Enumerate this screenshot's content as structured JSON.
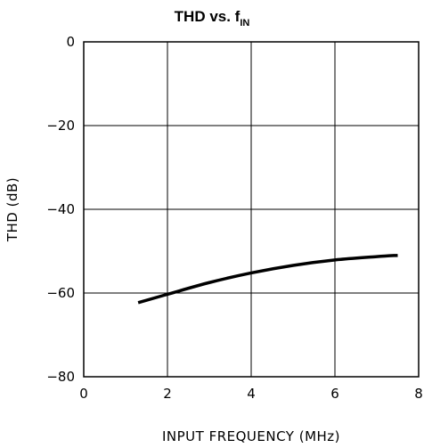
{
  "chart_data": {
    "type": "line",
    "title": {
      "main": "THD vs. f",
      "subscript": "IN"
    },
    "xlabel": "INPUT FREQUENCY (MHz)",
    "ylabel": "THD (dB)",
    "xlim": [
      0,
      8
    ],
    "ylim": [
      -80,
      0
    ],
    "xticks": [
      0,
      2,
      4,
      6,
      8
    ],
    "yticks": [
      0,
      -20,
      -40,
      -60,
      -80
    ],
    "grid": true,
    "series": [
      {
        "x": [
          1.3,
          2.0,
          3.0,
          4.0,
          5.0,
          6.0,
          7.0,
          7.5
        ],
        "y": [
          -62.3,
          -60.3,
          -57.5,
          -55.2,
          -53.4,
          -52.1,
          -51.3,
          -51.0
        ]
      }
    ]
  }
}
